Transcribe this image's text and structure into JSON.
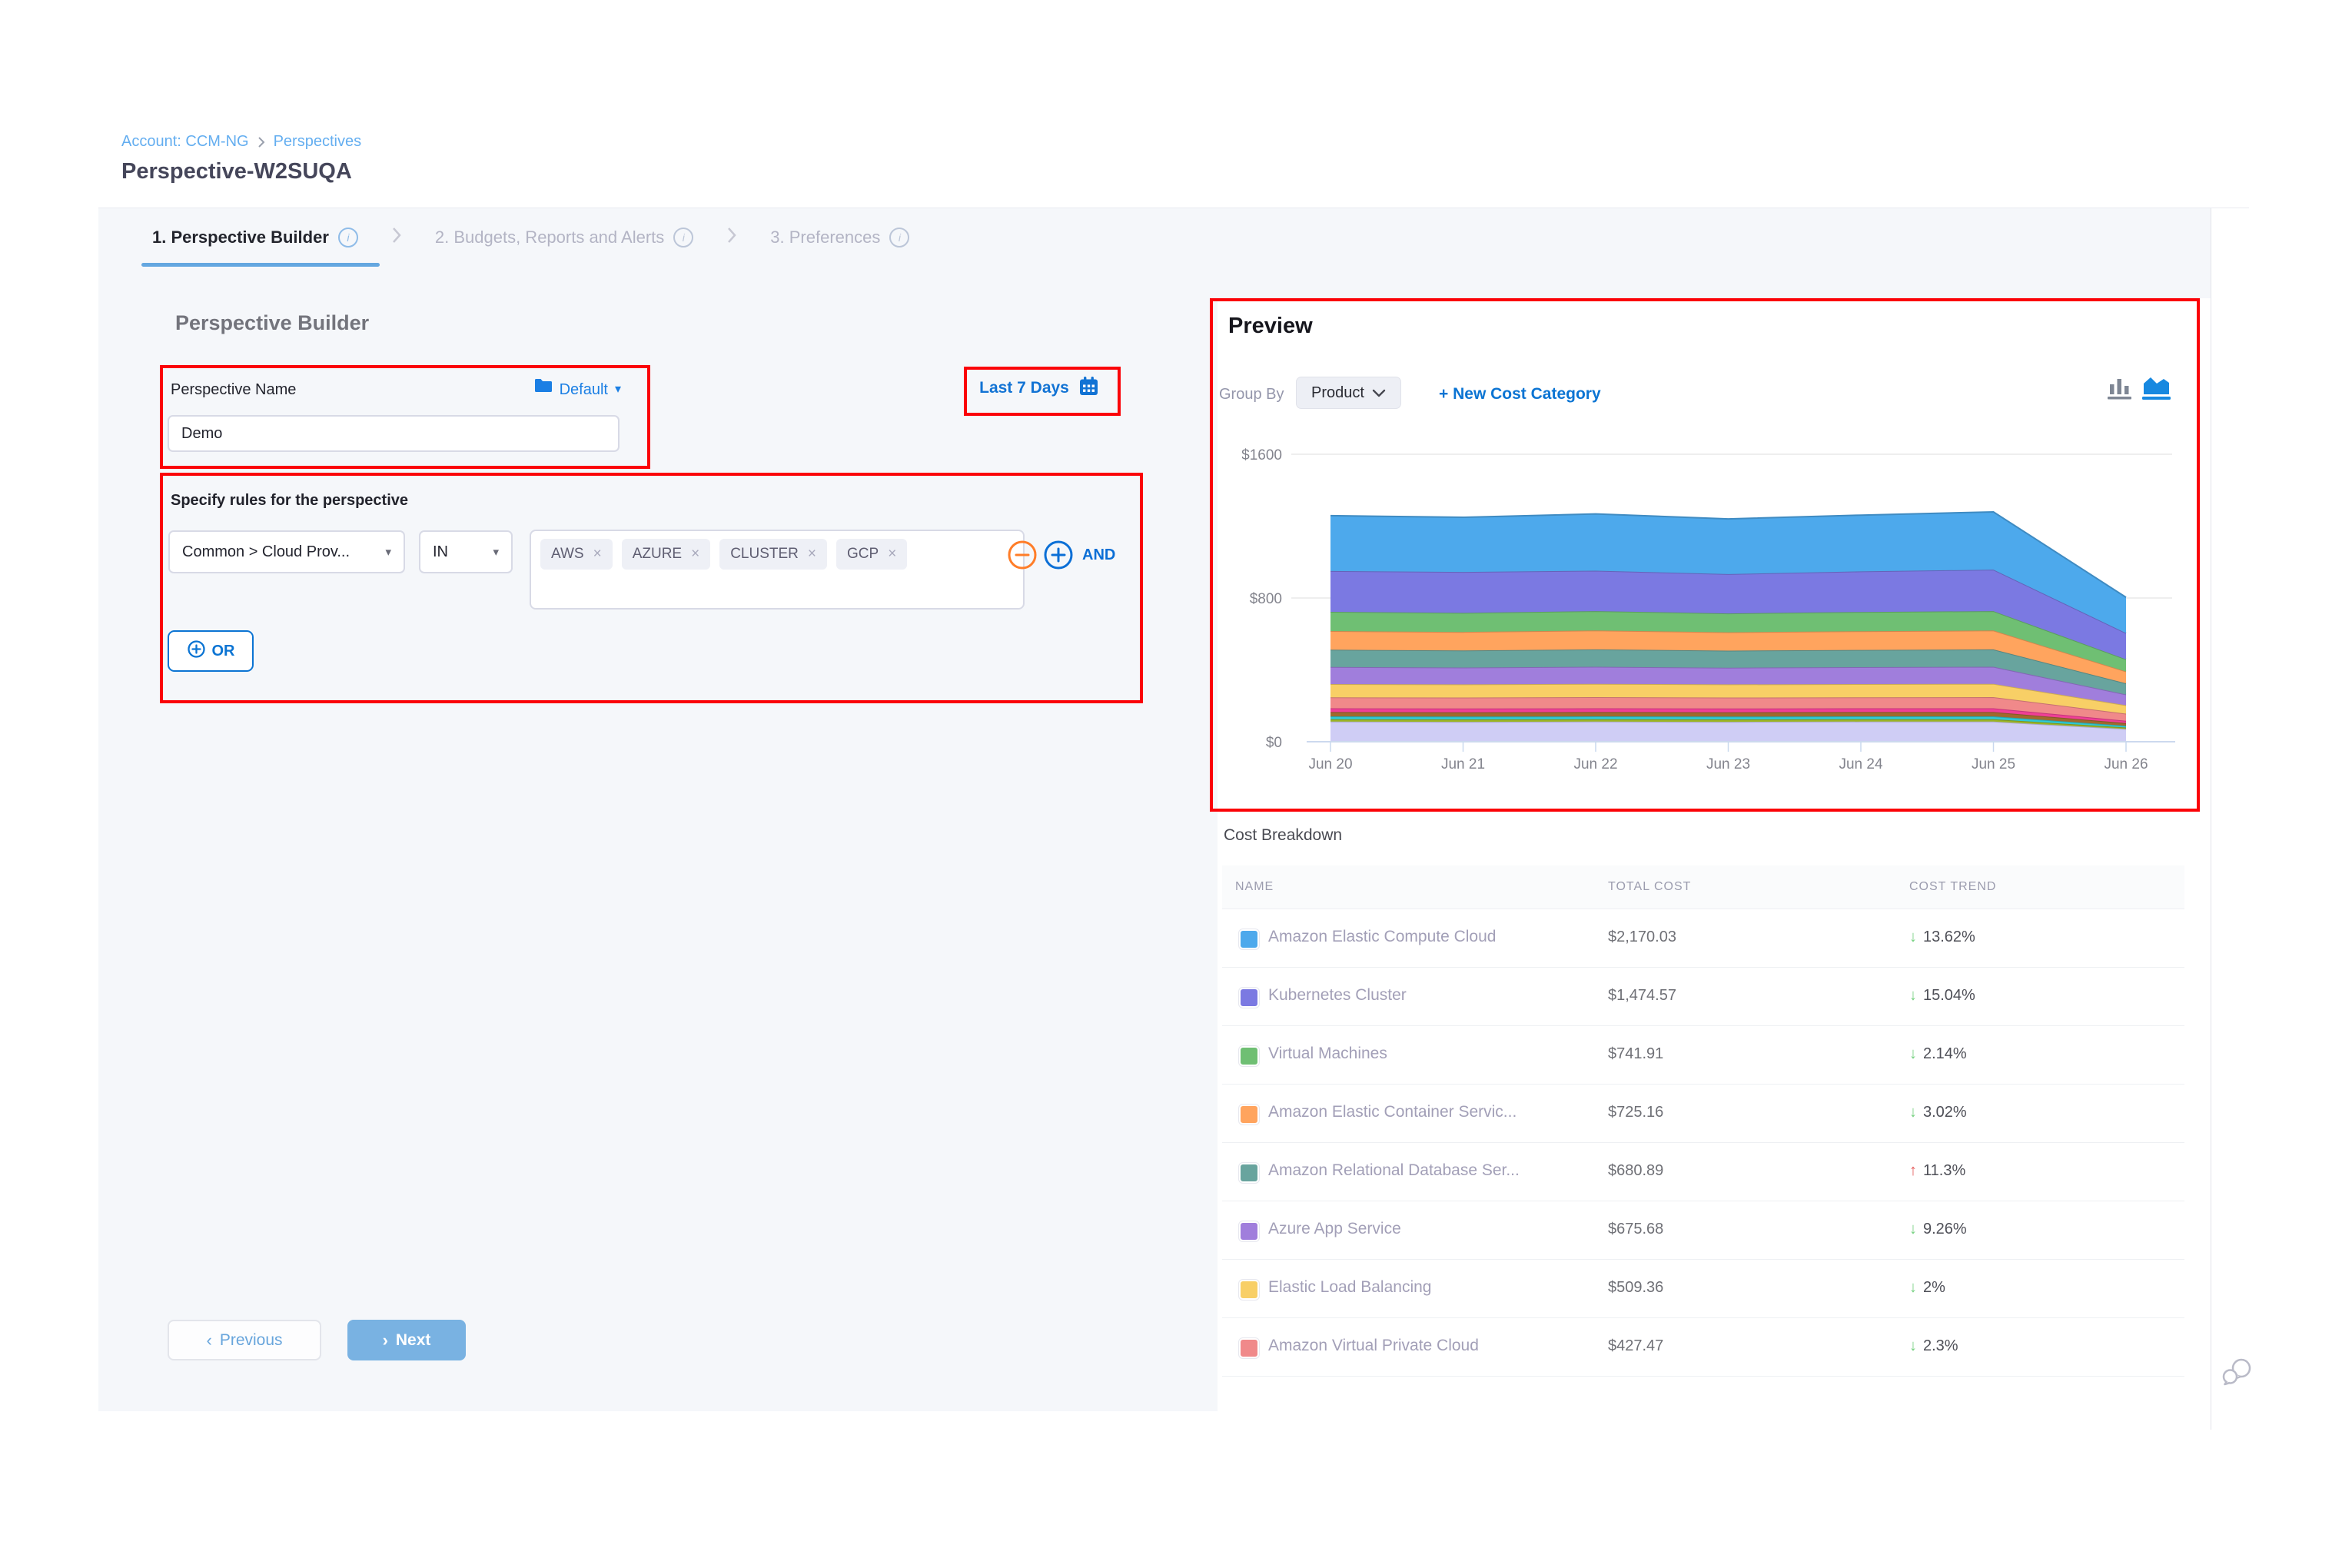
{
  "breadcrumb": {
    "account": "Account: CCM-NG",
    "section": "Perspectives"
  },
  "page_title": "Perspective-W2SUQA",
  "tabs": [
    {
      "label": "1. Perspective Builder"
    },
    {
      "label": "2. Budgets, Reports and Alerts"
    },
    {
      "label": "3. Preferences"
    }
  ],
  "builder": {
    "heading": "Perspective Builder",
    "name_label": "Perspective Name",
    "folder_selector": "Default",
    "name_value": "Demo",
    "date_range": "Last 7 Days",
    "rules_label": "Specify rules for the perspective",
    "field_dropdown": "Common > Cloud Prov...",
    "operator_dropdown": "IN",
    "values": [
      "AWS",
      "AZURE",
      "CLUSTER",
      "GCP"
    ],
    "and_label": "AND",
    "or_label": "OR",
    "previous_label": "Previous",
    "next_label": "Next"
  },
  "preview": {
    "heading": "Preview",
    "group_by_label": "Group By",
    "group_by_value": "Product",
    "new_cost_category": "+ New Cost Category"
  },
  "cost_breakdown": {
    "heading": "Cost Breakdown",
    "columns": [
      "NAME",
      "TOTAL COST",
      "COST TREND"
    ],
    "rows": [
      {
        "name": "Amazon Elastic Compute Cloud",
        "color": "#4da9ec",
        "cost": "$2,170.03",
        "trend": "13.62%",
        "dir": "down"
      },
      {
        "name": "Kubernetes Cluster",
        "color": "#7b79e2",
        "cost": "$1,474.57",
        "trend": "15.04%",
        "dir": "down"
      },
      {
        "name": "Virtual Machines",
        "color": "#6fbf73",
        "cost": "$741.91",
        "trend": "2.14%",
        "dir": "down"
      },
      {
        "name": "Amazon Elastic Container Servic...",
        "color": "#ffa45e",
        "cost": "$725.16",
        "trend": "3.02%",
        "dir": "down"
      },
      {
        "name": "Amazon Relational Database Ser...",
        "color": "#68a49e",
        "cost": "$680.89",
        "trend": "11.3%",
        "dir": "up"
      },
      {
        "name": "Azure App Service",
        "color": "#a07edc",
        "cost": "$675.68",
        "trend": "9.26%",
        "dir": "down"
      },
      {
        "name": "Elastic Load Balancing",
        "color": "#f8cf66",
        "cost": "$509.36",
        "trend": "2%",
        "dir": "down"
      },
      {
        "name": "Amazon Virtual Private Cloud",
        "color": "#f0898a",
        "cost": "$427.47",
        "trend": "2.3%",
        "dir": "down"
      }
    ]
  },
  "chart_data": {
    "type": "area",
    "stacked": true,
    "legend": false,
    "x": [
      "Jun 20",
      "Jun 21",
      "Jun 22",
      "Jun 23",
      "Jun 24",
      "Jun 25",
      "Jun 26"
    ],
    "ylim": [
      0,
      1600
    ],
    "yticks": [
      {
        "value": 0,
        "label": "$0"
      },
      {
        "value": 800,
        "label": "$800"
      },
      {
        "value": 1600,
        "label": "$1600"
      }
    ],
    "series": [
      {
        "name": "Others (lavender)",
        "color": "#cfcdf5",
        "values": [
          112,
          111,
          112,
          111,
          112,
          112,
          71
        ]
      },
      {
        "name": "unlabeled-olive",
        "color": "#9cb525",
        "values": [
          13,
          13,
          13,
          13,
          13,
          13,
          8
        ]
      },
      {
        "name": "unlabeled-cyan",
        "color": "#2fc9d4",
        "values": [
          16,
          16,
          16,
          16,
          16,
          16,
          10
        ]
      },
      {
        "name": "unlabeled-brown",
        "color": "#a06a2d",
        "values": [
          24,
          24,
          24,
          24,
          24,
          24,
          15
        ]
      },
      {
        "name": "unlabeled-pink",
        "color": "#ef3f96",
        "values": [
          21,
          21,
          21,
          21,
          21,
          21,
          13
        ]
      },
      {
        "name": "Amazon Virtual Private Cloud",
        "color": "#f0898a",
        "values": [
          61,
          61,
          62,
          61,
          61,
          62,
          39
        ]
      },
      {
        "name": "Elastic Load Balancing",
        "color": "#f8cf66",
        "values": [
          74,
          73,
          74,
          73,
          74,
          74,
          47
        ]
      },
      {
        "name": "Azure App Service",
        "color": "#a07edc",
        "values": [
          95,
          94,
          95,
          93,
          94,
          95,
          60
        ]
      },
      {
        "name": "Amazon Relational Database Service",
        "color": "#68a49e",
        "values": [
          96,
          95,
          97,
          95,
          96,
          97,
          62
        ]
      },
      {
        "name": "Amazon Elastic Container Service",
        "color": "#ffa45e",
        "values": [
          104,
          103,
          105,
          102,
          104,
          105,
          66
        ]
      },
      {
        "name": "Virtual Machines",
        "color": "#6fbf73",
        "values": [
          107,
          106,
          108,
          105,
          107,
          108,
          68
        ]
      },
      {
        "name": "Kubernetes Cluster",
        "color": "#7b79e2",
        "values": [
          227,
          228,
          225,
          219,
          226,
          231,
          146
        ]
      },
      {
        "name": "Amazon Elastic Compute Cloud",
        "color": "#4da9ec",
        "values": [
          308,
          304,
          316,
          307,
          313,
          321,
          199
        ]
      }
    ]
  },
  "icons": {
    "caret_down": "▾",
    "chip_remove": "×",
    "arrow_down": "↓",
    "arrow_up": "↑",
    "chevron_prev": "‹",
    "chevron_next": "›"
  },
  "colors": {
    "annotation_red": "#fb0207",
    "accent_blue": "#0b74d3",
    "link_blue": "#64aef0",
    "trend_down_green": "#74d07f",
    "trend_up_red": "#e45858",
    "panel_gray": "#f5f7fa"
  }
}
